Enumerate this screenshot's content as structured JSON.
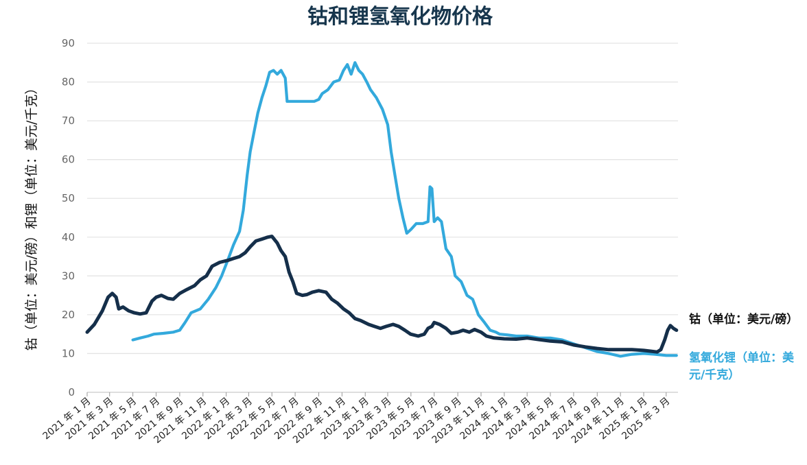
{
  "chart_data": {
    "type": "line",
    "title": "钴和锂氢氧化物价格",
    "ylabel": "钴（单位：美元/磅）和锂（单位：美元/千克）",
    "xlabel": "",
    "ylim": [
      0,
      90
    ],
    "yticks": [
      0,
      10,
      20,
      30,
      40,
      50,
      60,
      70,
      80,
      90
    ],
    "grid": true,
    "legend_position": "right",
    "x_tick_labels": [
      "2021 年 1 月",
      "2021 年 3 月",
      "2021 年 5 月",
      "2021 年 7 月",
      "2021 年 9 月",
      "2021 年 11 月",
      "2022 年 1 月",
      "2022 年 3 月",
      "2022 年 5 月",
      "2022 年 7 月",
      "2022 年 9 月",
      "2022 年 11 月",
      "2023 年 1 月",
      "2023 年 3 月",
      "2023 年 5 月",
      "2023 年 7 月",
      "2023 年 9 月",
      "2023 年 11 月",
      "2024 年 1 月",
      "2024 年 3 月",
      "2024 年 5 月",
      "2024 年 7 月",
      "2024 年 9 月",
      "2024 年 11 月",
      "2025 年 1 月",
      "2025 年 3 月"
    ],
    "series": [
      {
        "name": "钴（单位：美元/磅）",
        "color": "#152f4a",
        "points": [
          [
            "2021-01-01",
            15.5
          ],
          [
            "2021-01-20",
            17.5
          ],
          [
            "2021-02-10",
            21
          ],
          [
            "2021-02-25",
            24.5
          ],
          [
            "2021-03-08",
            25.5
          ],
          [
            "2021-03-18",
            24.5
          ],
          [
            "2021-03-25",
            21.5
          ],
          [
            "2021-04-05",
            22
          ],
          [
            "2021-04-20",
            21
          ],
          [
            "2021-05-05",
            20.5
          ],
          [
            "2021-05-20",
            20.2
          ],
          [
            "2021-06-05",
            20.5
          ],
          [
            "2021-06-20",
            23.5
          ],
          [
            "2021-07-01",
            24.5
          ],
          [
            "2021-07-15",
            25
          ],
          [
            "2021-08-01",
            24.2
          ],
          [
            "2021-08-15",
            24
          ],
          [
            "2021-09-01",
            25.5
          ],
          [
            "2021-09-20",
            26.5
          ],
          [
            "2021-10-10",
            27.5
          ],
          [
            "2021-10-25",
            29
          ],
          [
            "2021-11-10",
            30
          ],
          [
            "2021-11-25",
            32.5
          ],
          [
            "2021-12-15",
            33.5
          ],
          [
            "2022-01-05",
            34
          ],
          [
            "2022-01-20",
            34.5
          ],
          [
            "2022-02-05",
            35
          ],
          [
            "2022-02-20",
            36
          ],
          [
            "2022-03-05",
            37.5
          ],
          [
            "2022-03-20",
            39
          ],
          [
            "2022-04-05",
            39.5
          ],
          [
            "2022-04-20",
            40
          ],
          [
            "2022-05-01",
            40.2
          ],
          [
            "2022-05-15",
            38.5
          ],
          [
            "2022-05-25",
            36.5
          ],
          [
            "2022-06-05",
            35
          ],
          [
            "2022-06-15",
            31
          ],
          [
            "2022-06-25",
            28.5
          ],
          [
            "2022-07-05",
            25.5
          ],
          [
            "2022-07-20",
            25
          ],
          [
            "2022-08-01",
            25.2
          ],
          [
            "2022-08-15",
            25.8
          ],
          [
            "2022-09-01",
            26.2
          ],
          [
            "2022-09-20",
            25.8
          ],
          [
            "2022-10-05",
            24
          ],
          [
            "2022-10-20",
            23
          ],
          [
            "2022-11-05",
            21.5
          ],
          [
            "2022-11-20",
            20.5
          ],
          [
            "2022-12-05",
            19
          ],
          [
            "2022-12-20",
            18.5
          ],
          [
            "2023-01-10",
            17.5
          ],
          [
            "2023-01-25",
            17
          ],
          [
            "2023-02-10",
            16.5
          ],
          [
            "2023-02-25",
            17
          ],
          [
            "2023-03-15",
            17.5
          ],
          [
            "2023-03-30",
            17
          ],
          [
            "2023-04-15",
            16
          ],
          [
            "2023-04-30",
            15
          ],
          [
            "2023-05-20",
            14.5
          ],
          [
            "2023-06-05",
            15
          ],
          [
            "2023-06-15",
            16.5
          ],
          [
            "2023-06-25",
            17
          ],
          [
            "2023-07-01",
            18
          ],
          [
            "2023-07-15",
            17.5
          ],
          [
            "2023-08-01",
            16.5
          ],
          [
            "2023-08-15",
            15.2
          ],
          [
            "2023-09-01",
            15.5
          ],
          [
            "2023-09-15",
            16
          ],
          [
            "2023-10-01",
            15.5
          ],
          [
            "2023-10-15",
            16.2
          ],
          [
            "2023-11-01",
            15.5
          ],
          [
            "2023-11-15",
            14.5
          ],
          [
            "2023-12-05",
            14
          ],
          [
            "2024-01-01",
            13.8
          ],
          [
            "2024-02-01",
            13.7
          ],
          [
            "2024-03-01",
            14
          ],
          [
            "2024-04-01",
            13.6
          ],
          [
            "2024-05-01",
            13.2
          ],
          [
            "2024-06-01",
            13
          ],
          [
            "2024-07-01",
            12.2
          ],
          [
            "2024-08-01",
            11.7
          ],
          [
            "2024-09-01",
            11.3
          ],
          [
            "2024-10-01",
            11
          ],
          [
            "2024-11-01",
            11
          ],
          [
            "2024-12-01",
            11
          ],
          [
            "2025-01-01",
            10.8
          ],
          [
            "2025-01-20",
            10.6
          ],
          [
            "2025-02-05",
            10.4
          ],
          [
            "2025-02-15",
            11
          ],
          [
            "2025-02-25",
            13.5
          ],
          [
            "2025-03-05",
            16
          ],
          [
            "2025-03-12",
            17.2
          ],
          [
            "2025-03-20",
            16.5
          ],
          [
            "2025-03-28",
            16
          ]
        ]
      },
      {
        "name": "氢氧化锂（单位：美元/千克）",
        "color": "#33a9dc",
        "points": [
          [
            "2021-05-01",
            13.5
          ],
          [
            "2021-05-20",
            14
          ],
          [
            "2021-06-10",
            14.5
          ],
          [
            "2021-06-25",
            15
          ],
          [
            "2021-07-20",
            15.2
          ],
          [
            "2021-08-15",
            15.5
          ],
          [
            "2021-09-01",
            16
          ],
          [
            "2021-09-15",
            18
          ],
          [
            "2021-10-01",
            20.5
          ],
          [
            "2021-10-25",
            21.5
          ],
          [
            "2021-11-15",
            24
          ],
          [
            "2021-12-05",
            27
          ],
          [
            "2021-12-20",
            30
          ],
          [
            "2022-01-05",
            34
          ],
          [
            "2022-01-20",
            38
          ],
          [
            "2022-02-05",
            41.5
          ],
          [
            "2022-02-15",
            47
          ],
          [
            "2022-02-25",
            56
          ],
          [
            "2022-03-05",
            62
          ],
          [
            "2022-03-15",
            67
          ],
          [
            "2022-03-25",
            72
          ],
          [
            "2022-04-05",
            76
          ],
          [
            "2022-04-15",
            79
          ],
          [
            "2022-04-25",
            82.5
          ],
          [
            "2022-05-05",
            83
          ],
          [
            "2022-05-15",
            82
          ],
          [
            "2022-05-25",
            83
          ],
          [
            "2022-06-05",
            81
          ],
          [
            "2022-06-10",
            75
          ],
          [
            "2022-07-01",
            75
          ],
          [
            "2022-07-20",
            75
          ],
          [
            "2022-08-05",
            75
          ],
          [
            "2022-08-20",
            75
          ],
          [
            "2022-09-01",
            75.5
          ],
          [
            "2022-09-10",
            77
          ],
          [
            "2022-09-25",
            78
          ],
          [
            "2022-10-10",
            80
          ],
          [
            "2022-10-25",
            80.5
          ],
          [
            "2022-11-05",
            83
          ],
          [
            "2022-11-15",
            84.5
          ],
          [
            "2022-11-25",
            82
          ],
          [
            "2022-12-05",
            85
          ],
          [
            "2022-12-15",
            83
          ],
          [
            "2022-12-25",
            82
          ],
          [
            "2023-01-05",
            80
          ],
          [
            "2023-01-15",
            78
          ],
          [
            "2023-01-30",
            76
          ],
          [
            "2023-02-15",
            73
          ],
          [
            "2023-03-01",
            69
          ],
          [
            "2023-03-10",
            62
          ],
          [
            "2023-03-20",
            56
          ],
          [
            "2023-03-30",
            50
          ],
          [
            "2023-04-10",
            45
          ],
          [
            "2023-04-20",
            41
          ],
          [
            "2023-05-01",
            42
          ],
          [
            "2023-05-15",
            43.5
          ],
          [
            "2023-06-01",
            43.5
          ],
          [
            "2023-06-15",
            44
          ],
          [
            "2023-06-20",
            53
          ],
          [
            "2023-06-25",
            52.5
          ],
          [
            "2023-07-01",
            44
          ],
          [
            "2023-07-10",
            45
          ],
          [
            "2023-07-20",
            44
          ],
          [
            "2023-08-01",
            37
          ],
          [
            "2023-08-15",
            35
          ],
          [
            "2023-08-25",
            30
          ],
          [
            "2023-09-10",
            28.5
          ],
          [
            "2023-09-25",
            25
          ],
          [
            "2023-10-10",
            24
          ],
          [
            "2023-10-25",
            20
          ],
          [
            "2023-11-10",
            18
          ],
          [
            "2023-11-25",
            16
          ],
          [
            "2023-12-10",
            15.5
          ],
          [
            "2023-12-20",
            15
          ],
          [
            "2024-01-10",
            14.8
          ],
          [
            "2024-02-01",
            14.5
          ],
          [
            "2024-03-01",
            14.5
          ],
          [
            "2024-04-01",
            14
          ],
          [
            "2024-05-01",
            14
          ],
          [
            "2024-06-01",
            13.5
          ],
          [
            "2024-07-01",
            12.5
          ],
          [
            "2024-08-01",
            11.5
          ],
          [
            "2024-09-01",
            10.5
          ],
          [
            "2024-10-01",
            10
          ],
          [
            "2024-11-01",
            9.3
          ],
          [
            "2024-12-01",
            9.8
          ],
          [
            "2025-01-01",
            10
          ],
          [
            "2025-02-01",
            9.8
          ],
          [
            "2025-03-01",
            9.5
          ],
          [
            "2025-03-28",
            9.5
          ]
        ]
      }
    ]
  }
}
